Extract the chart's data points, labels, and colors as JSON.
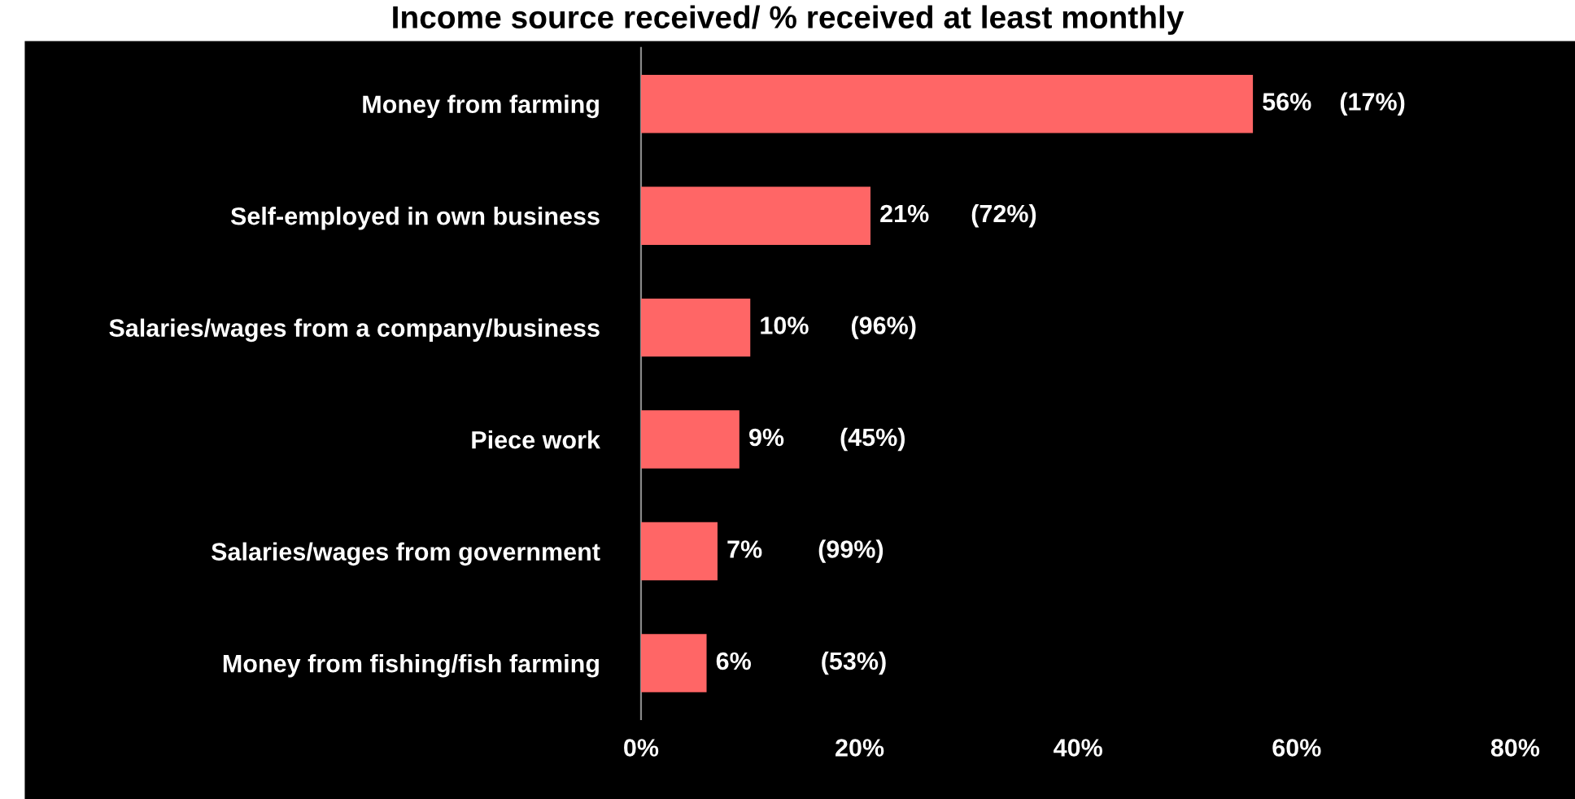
{
  "chart_data": {
    "type": "bar",
    "orientation": "horizontal",
    "title": "Income source received/ % received at least monthly",
    "categories": [
      "Money from farming",
      "Self-employed in own business",
      "Salaries/wages from a company/business",
      "Piece work",
      "Salaries/wages from government",
      "Money from fishing/fish farming"
    ],
    "values": [
      56,
      21,
      10,
      9,
      7,
      6
    ],
    "value_labels": [
      "56%    (17%)",
      "21%      (72%)",
      "10%      (96%)",
      "9%        (45%)",
      "7%        (99%)",
      "6%          (53%)"
    ],
    "color": "#ff6666",
    "xlim": [
      0,
      80
    ],
    "xticks": [
      {
        "value": 0,
        "label": "0%"
      },
      {
        "value": 20,
        "label": "20%"
      },
      {
        "value": 40,
        "label": "40%"
      },
      {
        "value": 60,
        "label": "60%"
      },
      {
        "value": 80,
        "label": "80%"
      }
    ]
  }
}
